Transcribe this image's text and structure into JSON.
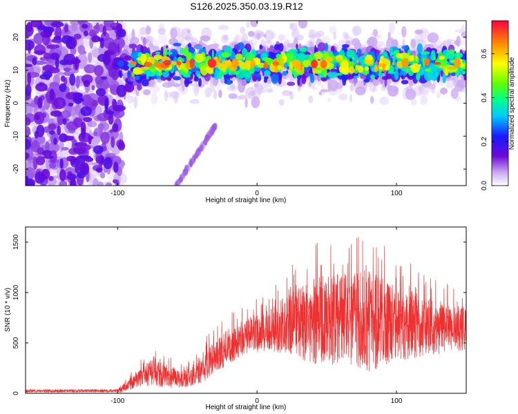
{
  "figure": {
    "title": "S126.2025.350.03.19.R12"
  },
  "chart_data": [
    {
      "type": "heatmap",
      "id": "spectrogram",
      "xlabel": "Height of straight line (km)",
      "ylabel": "Frequency (Hz)",
      "xlim": [
        -166,
        150
      ],
      "ylim": [
        -25,
        25
      ],
      "xticks": [
        -100,
        0,
        100
      ],
      "yticks": [
        -20,
        -10,
        0,
        10,
        20
      ],
      "colorbar": {
        "label": "Normalized spectral amplitude",
        "range": [
          0,
          0.75
        ],
        "ticks": [
          0.0,
          0.2,
          0.4,
          0.6
        ]
      },
      "features": [
        {
          "name": "noise-region",
          "x_range": [
            -166,
            -97
          ],
          "y_range": [
            -25,
            25
          ],
          "amplitude": 0.1
        },
        {
          "name": "signal-band",
          "x_range": [
            -100,
            150
          ],
          "center_hz": 12,
          "width_hz": 5,
          "amplitude_max": 0.7
        },
        {
          "name": "dispersed-arc",
          "x_range": [
            -58,
            -30
          ],
          "y_range": [
            -25,
            -7
          ],
          "amplitude": 0.08
        }
      ]
    },
    {
      "type": "line",
      "id": "snr",
      "xlabel": "Height of straight line (km)",
      "ylabel": "SNR (10 * v/v)",
      "xlim": [
        -166,
        150
      ],
      "ylim": [
        0,
        1650
      ],
      "xticks": [
        -100,
        0,
        100
      ],
      "yticks": [
        0,
        500,
        1000,
        1500
      ],
      "color": "#ee3030",
      "envelope": {
        "x": [
          -166,
          -100,
          -92,
          -85,
          -75,
          -65,
          -55,
          -45,
          -38,
          -30,
          -20,
          -10,
          0,
          10,
          20,
          30,
          40,
          50,
          60,
          70,
          80,
          90,
          100,
          110,
          120,
          130,
          140,
          150
        ],
        "mean": [
          20,
          22,
          80,
          160,
          200,
          170,
          140,
          170,
          270,
          360,
          470,
          560,
          600,
          640,
          680,
          700,
          720,
          730,
          740,
          730,
          720,
          700,
          690,
          680,
          660,
          650,
          650,
          640
        ],
        "max": [
          60,
          60,
          180,
          320,
          440,
          380,
          300,
          340,
          560,
          640,
          800,
          880,
          950,
          1050,
          1200,
          1350,
          1500,
          1550,
          1560,
          1580,
          1640,
          1500,
          1350,
          1300,
          1200,
          1150,
          1050,
          1050
        ]
      }
    }
  ]
}
